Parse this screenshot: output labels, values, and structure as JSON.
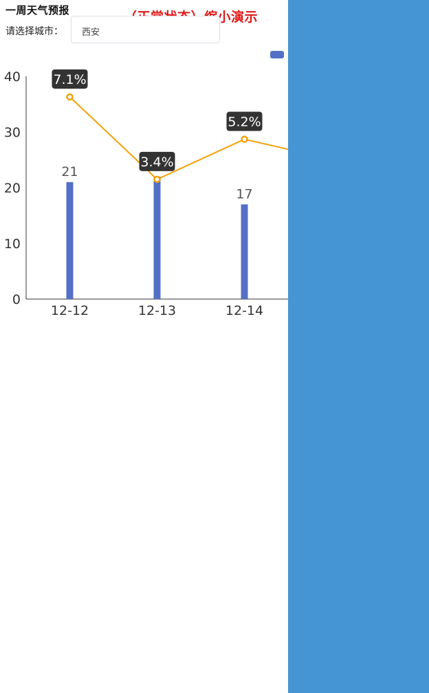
{
  "header": {
    "title": "一周天气预报",
    "demo_note": "（正常状态）缩小演示"
  },
  "city_selector": {
    "label": "请选择城市：",
    "value": "西安"
  },
  "colors": {
    "bar": "#5470c6",
    "line": "#f5a00a",
    "label_bg": "#333333",
    "side_panel": "#4595d4",
    "demo_note": "#e01818"
  },
  "chart_data": {
    "type": "bar",
    "categories": [
      "12-12",
      "12-13",
      "12-14"
    ],
    "ylim": [
      0,
      40
    ],
    "yticks": [
      0,
      10,
      20,
      30,
      40
    ],
    "series": [
      {
        "type": "bar",
        "values": [
          21,
          22,
          17
        ],
        "data_labels": [
          "21",
          "",
          "17"
        ]
      },
      {
        "type": "line",
        "values": [
          36.3,
          21.5,
          28.7
        ],
        "data_labels": [
          "7.1%",
          "3.4%",
          "5.2%"
        ],
        "trailing_value": 26.8
      }
    ],
    "legend": {
      "position": "top-right",
      "clipped": true
    }
  }
}
